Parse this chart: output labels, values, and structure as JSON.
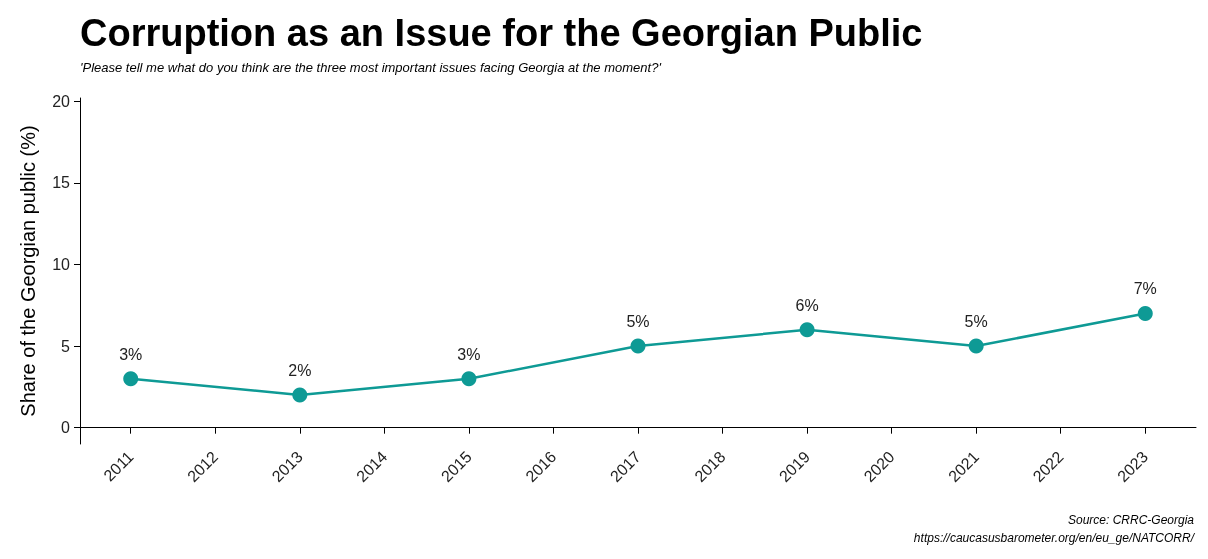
{
  "chart_data": {
    "type": "line",
    "title": "Corruption as an Issue for the Georgian Public",
    "subtitle": "'Please tell me what do you think are the three most important issues facing Georgia at the moment?'",
    "ylabel": "Share of the Georgian public (%)",
    "x": [
      2011,
      2013,
      2015,
      2017,
      2019,
      2021,
      2023
    ],
    "series": [
      {
        "color": "#0e9a95",
        "values": [
          3,
          2,
          3,
          5,
          6,
          5,
          7
        ],
        "value_labels": [
          "3%",
          "2%",
          "3%",
          "5%",
          "6%",
          "5%",
          "7%"
        ]
      }
    ],
    "xlim": [
      2010.4,
      2023.6
    ],
    "xticks": [
      2011,
      2012,
      2013,
      2014,
      2015,
      2016,
      2017,
      2018,
      2019,
      2020,
      2021,
      2022,
      2023
    ],
    "ylim": [
      -1,
      20.2
    ],
    "yticks": [
      0,
      5,
      10,
      15,
      20
    ],
    "grid": false,
    "marker": "circle",
    "line_style": "solid",
    "annotations": [
      "Source: CRRC-Georgia",
      "https://caucasusbarometer.org/en/eu_ge/NATCORR/"
    ]
  }
}
